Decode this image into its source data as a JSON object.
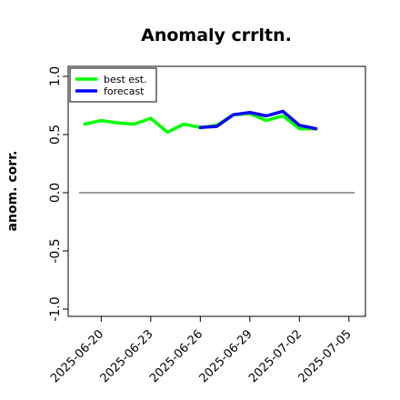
{
  "chart_data": {
    "type": "line",
    "title": "Anomaly crrltn.",
    "xlabel": "",
    "ylabel": "anom. corr.",
    "ylim": [
      -1.0,
      1.0
    ],
    "yticks": [
      "-1.0",
      "-0.5",
      "0.0",
      "0.5",
      "1.0"
    ],
    "xlim": [
      "2025-06-18",
      "2025-07-06"
    ],
    "xticks": [
      {
        "date": "2025-06-20",
        "label": "2025-06-20",
        "color": "#000000"
      },
      {
        "date": "2025-06-23",
        "label": "2025-06-23",
        "color": "#000000"
      },
      {
        "date": "2025-06-26",
        "label": "2025-06-26",
        "color": "#228B22"
      },
      {
        "date": "2025-06-29",
        "label": "2025-06-29",
        "color": "#000000"
      },
      {
        "date": "2025-07-02",
        "label": "2025-07-02",
        "color": "#000000"
      },
      {
        "date": "2025-07-05",
        "label": "2025-07-05",
        "color": "#000000"
      }
    ],
    "reference_line": 0.0,
    "grid": false,
    "legend_position": "top-left",
    "series": [
      {
        "name": "best est.",
        "color": "#00ff00",
        "x": [
          "2025-06-19",
          "2025-06-20",
          "2025-06-21",
          "2025-06-22",
          "2025-06-23",
          "2025-06-24",
          "2025-06-25",
          "2025-06-26",
          "2025-06-27",
          "2025-06-28",
          "2025-06-29",
          "2025-06-30",
          "2025-07-01",
          "2025-07-02",
          "2025-07-03"
        ],
        "values": [
          0.59,
          0.62,
          0.6,
          0.59,
          0.64,
          0.52,
          0.59,
          0.56,
          0.58,
          0.67,
          0.68,
          0.62,
          0.66,
          0.55,
          0.55
        ]
      },
      {
        "name": "forecast",
        "color": "#0000ff",
        "x": [
          "2025-06-26",
          "2025-06-27",
          "2025-06-28",
          "2025-06-29",
          "2025-06-30",
          "2025-07-01",
          "2025-07-02",
          "2025-07-03"
        ],
        "values": [
          0.56,
          0.57,
          0.67,
          0.69,
          0.66,
          0.7,
          0.58,
          0.55
        ]
      }
    ]
  }
}
